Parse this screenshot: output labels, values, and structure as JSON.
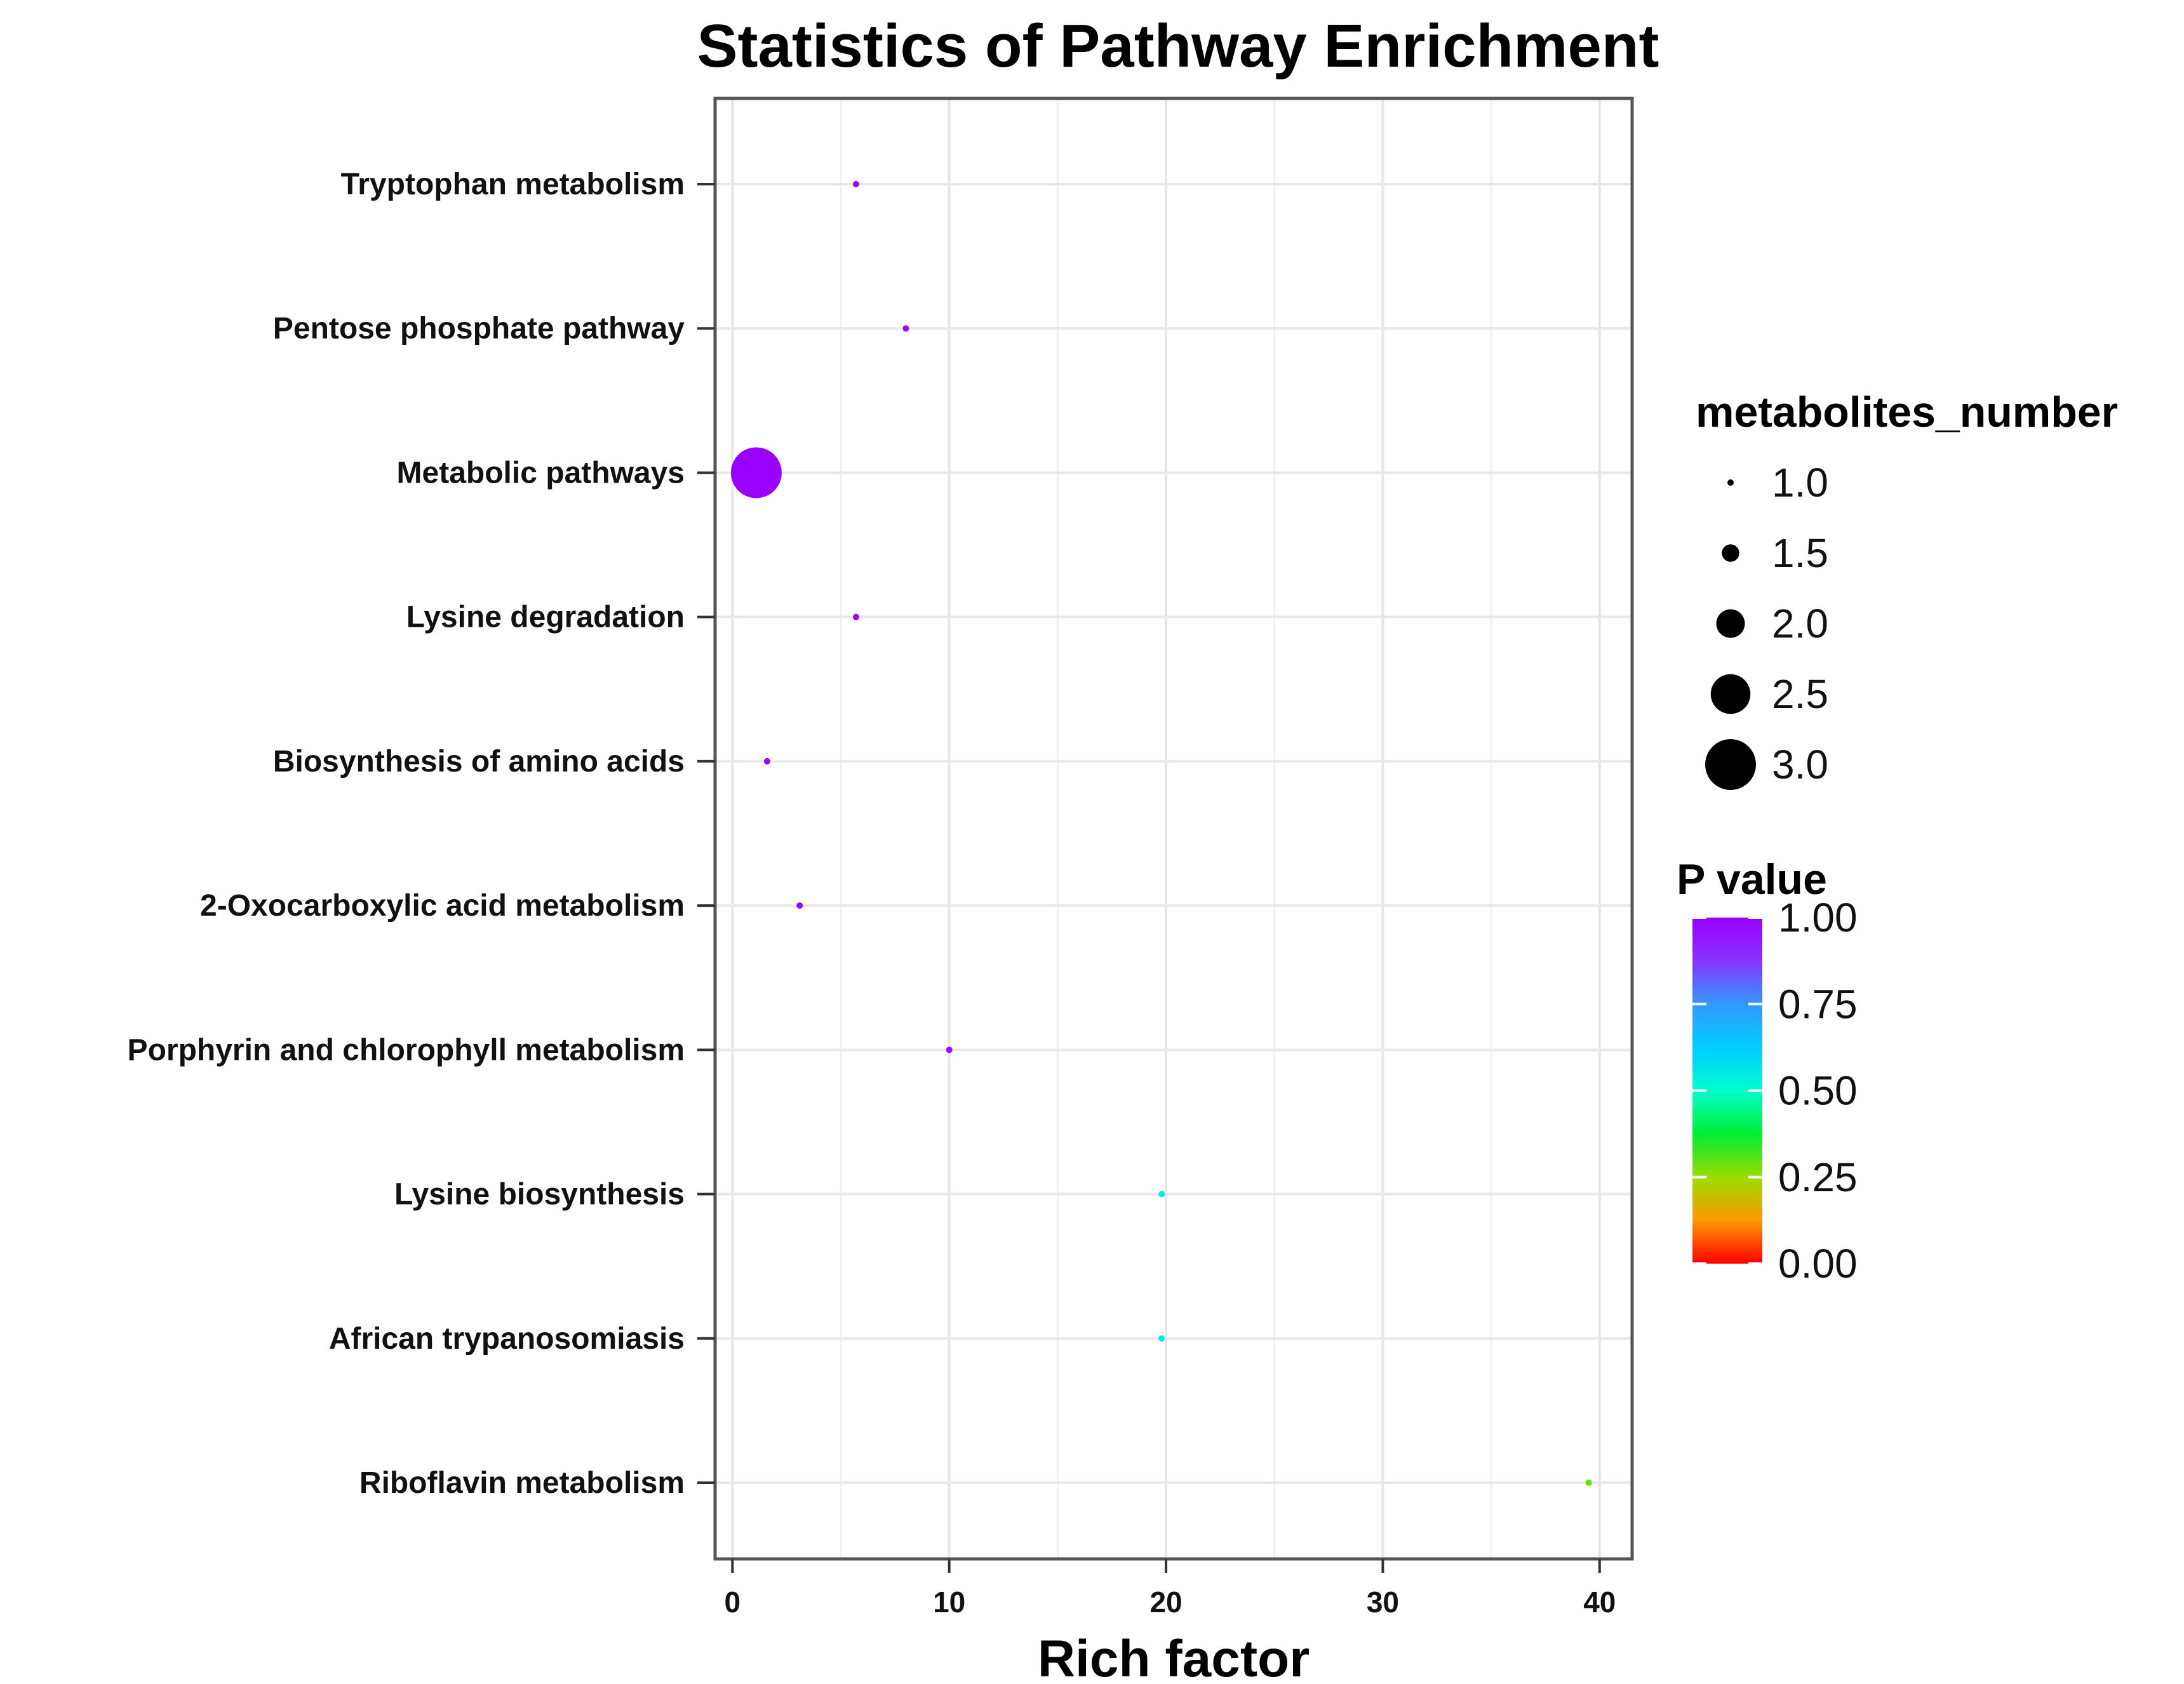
{
  "chart_data": {
    "type": "scatter",
    "title": "Statistics of Pathway Enrichment",
    "xlabel": "Rich factor",
    "ylabel": "",
    "xlim": [
      -0.8,
      41.5
    ],
    "xticks": [
      0,
      10,
      20,
      30,
      40
    ],
    "xtick_labels": [
      "0",
      "10",
      "20",
      "30",
      "40"
    ],
    "grid": true,
    "categories": [
      "Tryptophan metabolism",
      "Pentose phosphate pathway",
      "Metabolic pathways",
      "Lysine degradation",
      "Biosynthesis of amino acids",
      "2-Oxocarboxylic acid metabolism",
      "Porphyrin and chlorophyll metabolism",
      "Lysine biosynthesis",
      "African trypanosomiasis",
      "Riboflavin metabolism"
    ],
    "points": [
      {
        "pathway": "Tryptophan metabolism",
        "rich_factor": 5.7,
        "metabolites_number": 1,
        "p_value": 0.99
      },
      {
        "pathway": "Pentose phosphate pathway",
        "rich_factor": 8.0,
        "metabolites_number": 1,
        "p_value": 0.98
      },
      {
        "pathway": "Metabolic pathways",
        "rich_factor": 1.1,
        "metabolites_number": 3,
        "p_value": 1.0
      },
      {
        "pathway": "Lysine degradation",
        "rich_factor": 5.7,
        "metabolites_number": 1,
        "p_value": 0.99
      },
      {
        "pathway": "Biosynthesis of amino acids",
        "rich_factor": 1.6,
        "metabolites_number": 1,
        "p_value": 1.0
      },
      {
        "pathway": "2-Oxocarboxylic acid metabolism",
        "rich_factor": 3.1,
        "metabolites_number": 1,
        "p_value": 1.0
      },
      {
        "pathway": "Porphyrin and chlorophyll metabolism",
        "rich_factor": 10.0,
        "metabolites_number": 1,
        "p_value": 0.97
      },
      {
        "pathway": "Lysine biosynthesis",
        "rich_factor": 19.8,
        "metabolites_number": 1,
        "p_value": 0.55
      },
      {
        "pathway": "African trypanosomiasis",
        "rich_factor": 19.8,
        "metabolites_number": 1,
        "p_value": 0.55
      },
      {
        "pathway": "Riboflavin metabolism",
        "rich_factor": 39.5,
        "metabolites_number": 1,
        "p_value": 0.3
      }
    ],
    "size_legend": {
      "title": "metabolites_number",
      "values": [
        1.0,
        1.5,
        2.0,
        2.5,
        3.0
      ],
      "labels": [
        "1.0",
        "1.5",
        "2.0",
        "2.5",
        "3.0"
      ]
    },
    "color_legend": {
      "title": "P value",
      "ticks": [
        1.0,
        0.75,
        0.5,
        0.25,
        0.0
      ],
      "labels": [
        "1.00",
        "0.75",
        "0.50",
        "0.25",
        "0.00"
      ],
      "colors": [
        "#ff0000",
        "#ff9900",
        "#99dd00",
        "#00ee33",
        "#00ffcc",
        "#00ccff",
        "#3399ff",
        "#8833ff",
        "#9900ff"
      ]
    }
  }
}
